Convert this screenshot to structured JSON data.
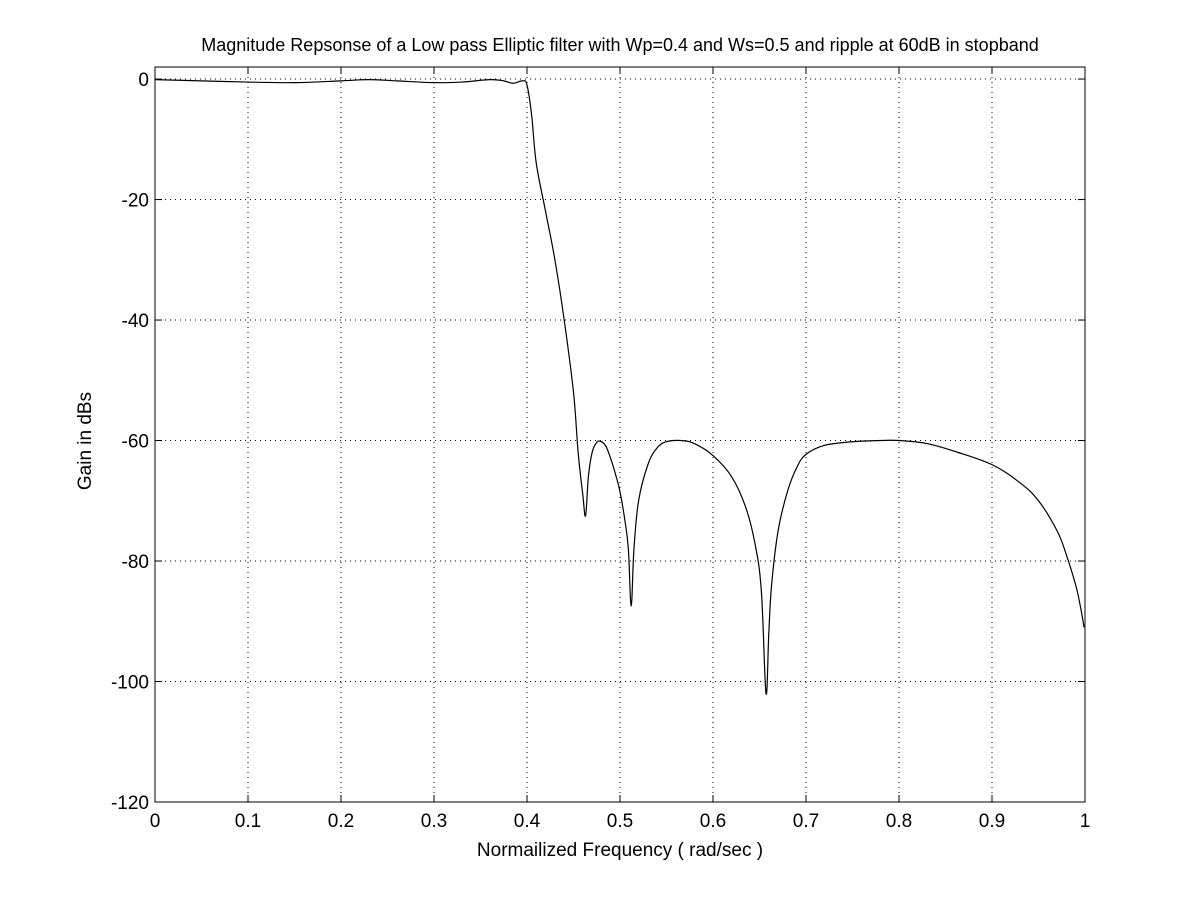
{
  "chart_data": {
    "type": "line",
    "title": "Magnitude Repsonse of a Low pass Elliptic filter with Wp=0.4 and Ws=0.5 and ripple at 60dB in stopband",
    "xlabel": "Normailized Frequency ( rad/sec )",
    "ylabel": "Gain in dBs",
    "xlim": [
      0,
      1
    ],
    "ylim": [
      -120,
      2
    ],
    "grid": true,
    "grid_style": "dotted",
    "xticks": [
      0,
      0.1,
      0.2,
      0.3,
      0.4,
      0.5,
      0.6,
      0.7,
      0.8,
      0.9,
      1
    ],
    "xtick_labels": [
      "0",
      "0.1",
      "0.2",
      "0.3",
      "0.4",
      "0.5",
      "0.6",
      "0.7",
      "0.8",
      "0.9",
      "1"
    ],
    "yticks": [
      0,
      -20,
      -40,
      -60,
      -80,
      -100,
      -120
    ],
    "ytick_labels": [
      "0",
      "-20",
      "-40",
      "-60",
      "-80",
      "-100",
      "-120"
    ],
    "line_color": "#000000",
    "series": [
      {
        "x": [
          0,
          0.05,
          0.1,
          0.15,
          0.2,
          0.23,
          0.26,
          0.3,
          0.33,
          0.36,
          0.375,
          0.385,
          0.395,
          0.4,
          0.405,
          0.41,
          0.42,
          0.43,
          0.44,
          0.45,
          0.455,
          0.46,
          0.463,
          0.466,
          0.47,
          0.475,
          0.48,
          0.485,
          0.49,
          0.495,
          0.5,
          0.505,
          0.509,
          0.512,
          0.515,
          0.52,
          0.53,
          0.54,
          0.55,
          0.565,
          0.58,
          0.6,
          0.62,
          0.635,
          0.645,
          0.652,
          0.657,
          0.66,
          0.663,
          0.67,
          0.68,
          0.69,
          0.7,
          0.72,
          0.75,
          0.78,
          0.8,
          0.83,
          0.86,
          0.9,
          0.93,
          0.95,
          0.97,
          0.98,
          0.99,
          0.995,
          0.999
        ],
        "y": [
          -0.1,
          -0.3,
          -0.5,
          -0.6,
          -0.3,
          -0.1,
          -0.3,
          -0.6,
          -0.5,
          -0.1,
          -0.3,
          -0.7,
          -0.3,
          -1,
          -6,
          -14,
          -22,
          -30,
          -40,
          -52,
          -62,
          -69,
          -72.5,
          -66,
          -62,
          -60.3,
          -60.2,
          -61,
          -63,
          -65.5,
          -68.5,
          -73,
          -78,
          -87.5,
          -78,
          -70,
          -64,
          -61.2,
          -60.2,
          -60,
          -60.5,
          -62.5,
          -66,
          -71,
          -77,
          -85,
          -102,
          -92,
          -84,
          -75,
          -68.5,
          -64.5,
          -62.3,
          -60.8,
          -60.2,
          -60,
          -60,
          -60.5,
          -61.8,
          -64,
          -67,
          -70,
          -75,
          -79,
          -84,
          -87.5,
          -91
        ]
      }
    ]
  }
}
